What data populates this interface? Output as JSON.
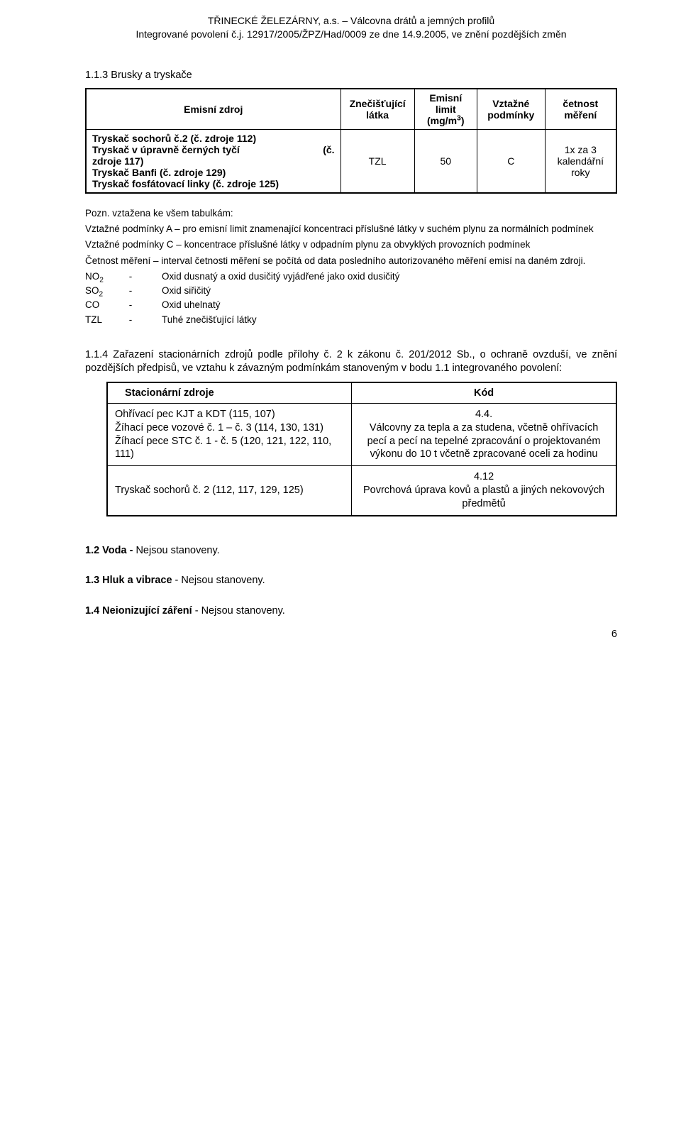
{
  "header": {
    "line1": "TŘINECKÉ ŽELEZÁRNY, a.s. – Válcovna drátů a jemných profilů",
    "line2": "Integrované povolení č.j. 12917/2005/ŽPZ/Had/0009 ze dne 14.9.2005, ve znění pozdějších změn"
  },
  "sec113": {
    "heading": "1.1.3   Brusky a tryskače",
    "table": {
      "head": {
        "c1": "Emisní zdroj",
        "c2": "Znečišťující látka",
        "c3_html": "Emisní limit (mg/m<sup>3</sup>)",
        "c4": "Vztažné podmínky",
        "c5": "četnost měření"
      },
      "row": {
        "sources": [
          "Tryskač sochorů č.2 (č. zdroje 112)",
          "Tryskač v úpravně černých tyčí (č. zdroje 117)",
          "Tryskač Banfi (č. zdroje 129)",
          "Tryskač fosfátovací linky (č. zdroje 125)"
        ],
        "latka": "TZL",
        "limit": "50",
        "podminky": "C",
        "cetnost": "1x za 3 kalendářní roky"
      }
    },
    "notes": {
      "intro": "Pozn. vztažena ke všem tabulkám:",
      "a": "Vztažné podmínky A – pro emisní limit znamenající koncentraci příslušné látky v suchém plynu za normálních podmínek",
      "c": "Vztažné podmínky C – koncentrace příslušné látky v odpadním plynu za obvyklých provozních podmínek",
      "cetnost": "Četnost měření – interval četnosti měření se počítá od data posledního autorizovaného měření emisí na daném zdroji.",
      "abbrs": [
        {
          "k": "NO",
          "sub": "2",
          "v": "Oxid dusnatý a oxid dusičitý vyjádřené jako oxid dusičitý"
        },
        {
          "k": "SO",
          "sub": "2",
          "v": "Oxid siřičitý"
        },
        {
          "k": "CO",
          "sub": "",
          "v": "Oxid uhelnatý"
        },
        {
          "k": "TZL",
          "sub": "",
          "v": "Tuhé znečišťující látky"
        }
      ]
    }
  },
  "sec114": {
    "para": "1.1.4 Zařazení stacionárních zdrojů podle přílohy č. 2 k zákonu č. 201/2012 Sb., o ochraně ovzduší, ve znění pozdějších předpisů, ve vztahu k závazným podmínkám stanoveným v bodu 1.1 integrovaného povolení:",
    "table": {
      "head": {
        "c1": "Stacionární zdroje",
        "c2": "Kód"
      },
      "rows": [
        {
          "left": "Ohřívací pec KJT a KDT (115, 107)\nŽíhací pece vozové č. 1 – č. 3 (114, 130, 131)\nŽíhací pece STC č. 1 - č. 5 (120, 121, 122, 110, 111)",
          "right": "4.4.\nVálcovny za tepla a za studena, včetně ohřívacích pecí a pecí na tepelné zpracování o projektovaném výkonu do 10 t včetně zpracované oceli za hodinu"
        },
        {
          "left": "Tryskač sochorů č. 2 (112, 117, 129, 125)",
          "right": "4.12\nPovrchová úprava kovů a plastů a jiných nekovových předmětů"
        }
      ]
    }
  },
  "later": {
    "s12_html": "<b>1.2 Voda -</b> Nejsou stanoveny.",
    "s13_html": "<b>1.3 Hluk a vibrace</b> - Nejsou stanoveny.",
    "s14_html": "<b>1.4 Neionizující záření</b> - Nejsou stanoveny."
  },
  "page_number": "6"
}
